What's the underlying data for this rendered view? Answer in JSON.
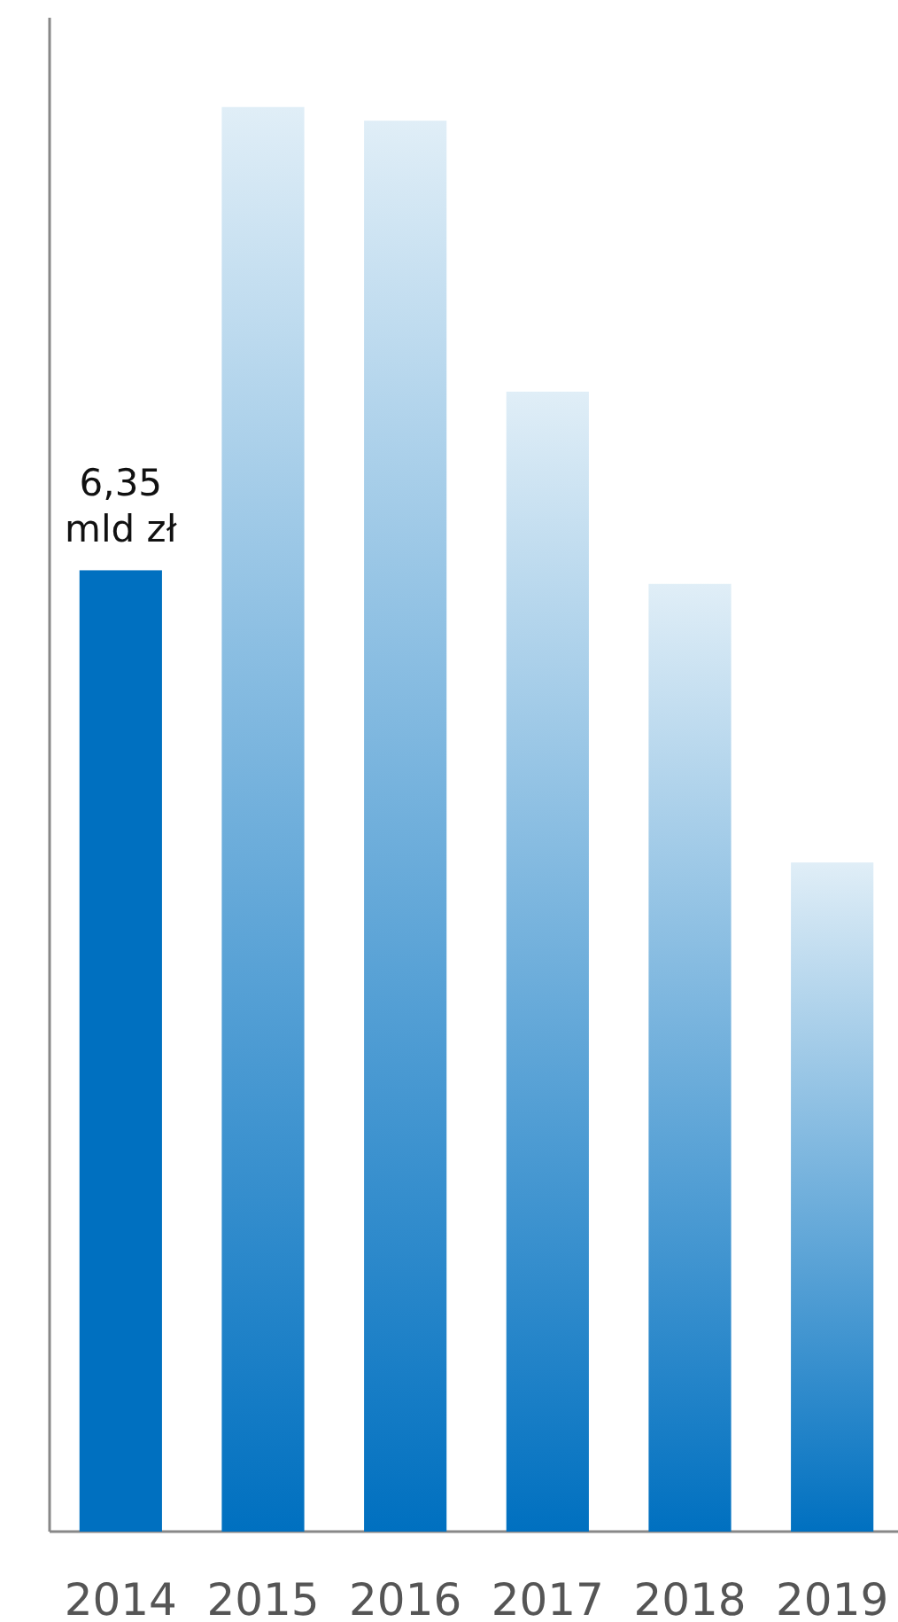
{
  "chart_data": {
    "type": "bar",
    "categories": [
      "2014",
      "2015",
      "2016",
      "2017",
      "2018",
      "2019"
    ],
    "values": [
      6.35,
      9.41,
      9.32,
      7.53,
      6.26,
      4.42
    ],
    "ylim": [
      0,
      10
    ],
    "colors": [
      "#0070c0",
      "#0070c0",
      "#0070c0",
      "#0070c0",
      "#0070c0",
      "#0070c0"
    ],
    "value_labels": [
      "6,35 mld zł",
      null,
      null,
      null,
      null,
      null
    ]
  }
}
